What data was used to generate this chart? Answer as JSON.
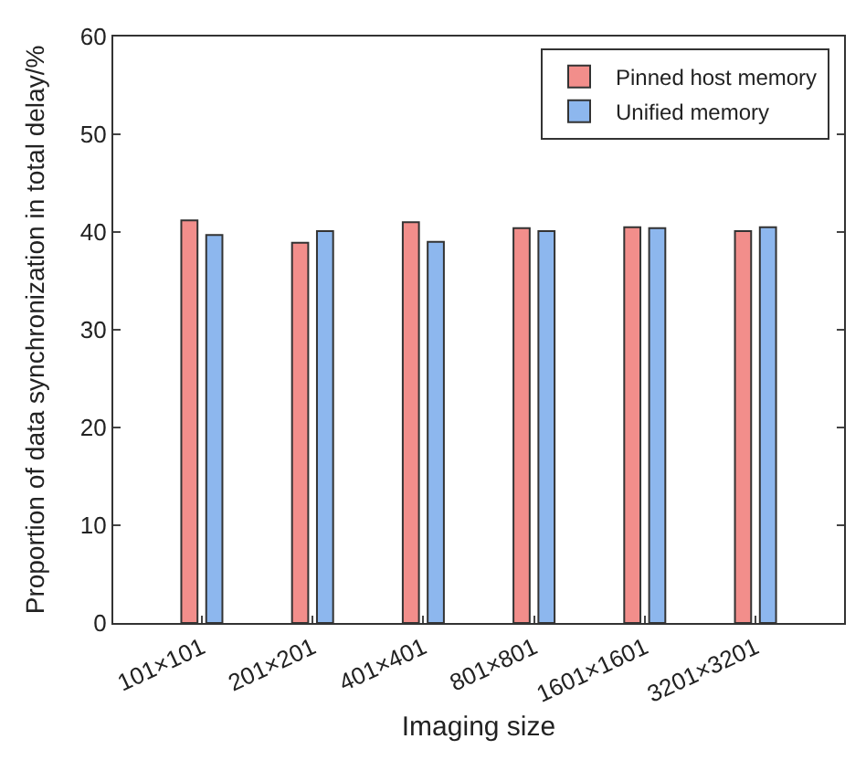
{
  "chart_data": {
    "type": "bar",
    "xlabel": "Imaging size",
    "ylabel": "Proportion of data synchronization in total delay/%",
    "categories": [
      "101×101",
      "201×201",
      "401×401",
      "801×801",
      "1601×1601",
      "3201×3201"
    ],
    "series": [
      {
        "name": "Pinned host memory",
        "color": "#f28e8b",
        "values": [
          41.2,
          38.9,
          41.0,
          40.4,
          40.5,
          40.1
        ]
      },
      {
        "name": "Unified memory",
        "color": "#8db7ee",
        "values": [
          39.7,
          40.1,
          39.0,
          40.1,
          40.4,
          40.5
        ]
      }
    ],
    "ylim": [
      0,
      60
    ],
    "yticks": [
      0,
      10,
      20,
      30,
      40,
      50,
      60
    ],
    "grid": false,
    "legend": "top right"
  }
}
